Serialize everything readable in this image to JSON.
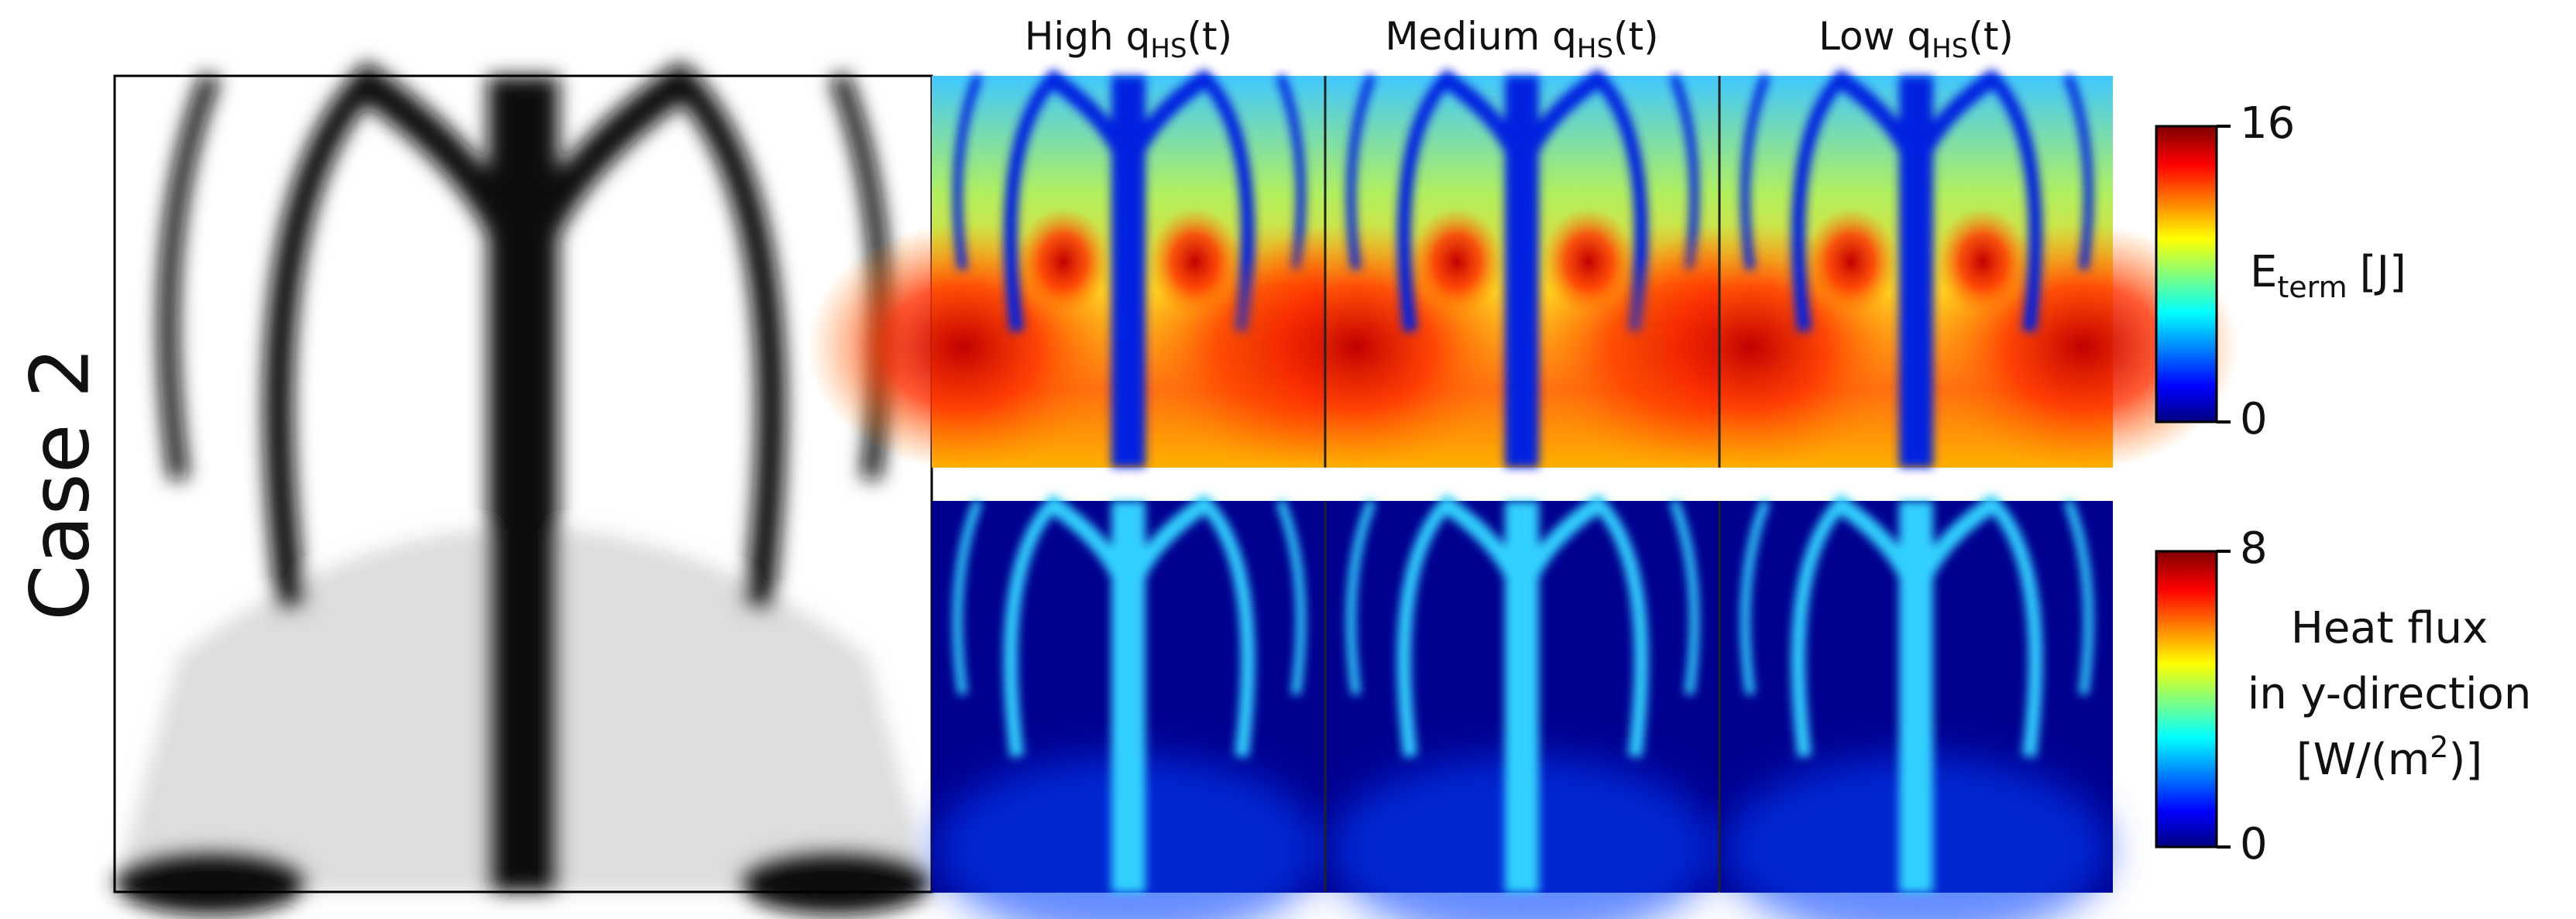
{
  "row_label": "Case 2",
  "columns": [
    {
      "text": "High q",
      "sub": "HS",
      "suffix": "(t)"
    },
    {
      "text": "Medium q",
      "sub": "HS",
      "suffix": "(t)"
    },
    {
      "text": "Low q",
      "sub": "HS",
      "suffix": "(t)"
    }
  ],
  "colorbars": [
    {
      "label": {
        "text": "E",
        "sub": "term",
        "suffix": "[J]"
      },
      "lim": [
        0,
        16
      ],
      "ticks": [
        0,
        16
      ]
    },
    {
      "label_lines": [
        "Heat flux",
        "in y-direction"
      ],
      "unit": {
        "text": "[W/(m",
        "sup": "2",
        "suffix": ")]"
      },
      "lim": [
        0,
        8
      ],
      "ticks": [
        0,
        8
      ]
    }
  ]
}
